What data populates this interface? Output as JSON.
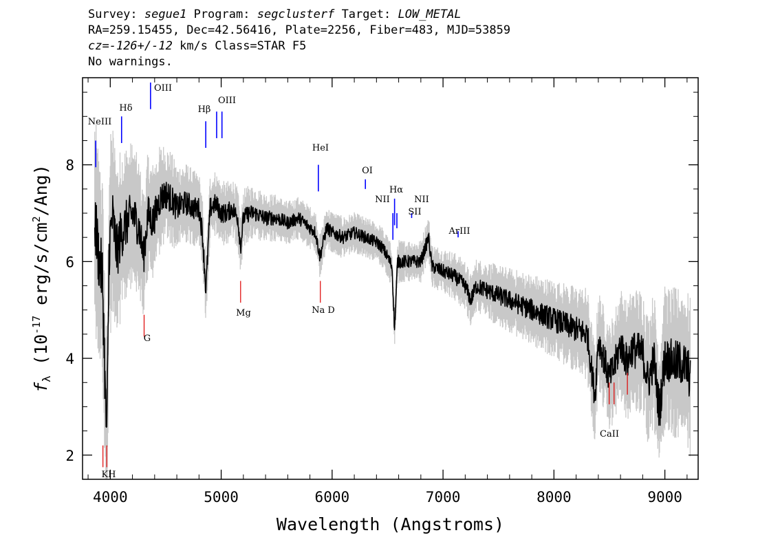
{
  "header": {
    "survey_label": "Survey:",
    "survey": "segue1",
    "program_label": "Program:",
    "program": "segclusterf",
    "target_label": "Target:",
    "target": "LOW_METAL",
    "line2": "RA=259.15455, Dec=42.56416, Plate=2256, Fiber=483, MJD=53859",
    "cz_label": "cz=",
    "cz": "-126+/-12",
    "cz_units_class": " km/s Class=STAR F5",
    "line4": "No warnings."
  },
  "colors": {
    "flux": "#000000",
    "error_band": "#c8c8c8",
    "emission": "#0000ff",
    "absorption": "#dd0000",
    "frame": "#000000"
  },
  "chart_data": {
    "type": "line",
    "title": "",
    "xlabel": "Wavelength (Angstroms)",
    "ylabel": "fλ (10^-17 erg/s/cm^2/Ang)",
    "xlim": [
      3750,
      9300
    ],
    "ylim": [
      1.5,
      9.8
    ],
    "x_ticks": [
      4000,
      5000,
      6000,
      7000,
      8000,
      9000
    ],
    "x_tick_labels": [
      "4000",
      "5000",
      "6000",
      "7000",
      "8000",
      "9000"
    ],
    "y_ticks": [
      2,
      4,
      6,
      8
    ],
    "y_tick_labels": [
      "2",
      "4",
      "6",
      "8"
    ],
    "grid": false,
    "series": [
      {
        "kind": "flux",
        "x": [
          3860,
          3900,
          3930,
          3960,
          3970,
          3990,
          4020,
          4060,
          4100,
          4150,
          4200,
          4260,
          4300,
          4340,
          4380,
          4450,
          4500,
          4550,
          4600,
          4650,
          4700,
          4750,
          4800,
          4830,
          4862,
          4900,
          4950,
          5000,
          5050,
          5100,
          5150,
          5175,
          5200,
          5250,
          5300,
          5400,
          5500,
          5600,
          5700,
          5800,
          5850,
          5890,
          5950,
          6000,
          6100,
          6200,
          6300,
          6400,
          6450,
          6500,
          6540,
          6563,
          6590,
          6650,
          6700,
          6800,
          6870,
          6900,
          7000,
          7100,
          7200,
          7250,
          7300,
          7400,
          7500,
          7600,
          7700,
          7800,
          7900,
          8000,
          8100,
          8200,
          8300,
          8370,
          8400,
          8498,
          8542,
          8600,
          8662,
          8700,
          8800,
          8850,
          8900,
          8950,
          9000,
          9100,
          9150,
          9200,
          9230
        ],
        "y": [
          6.9,
          6.0,
          5.7,
          2.8,
          2.4,
          6.3,
          6.9,
          6.2,
          6.6,
          6.8,
          7.0,
          6.7,
          6.1,
          7.0,
          6.8,
          7.3,
          7.4,
          7.3,
          7.1,
          7.2,
          7.2,
          7.1,
          7.1,
          6.6,
          5.4,
          7.1,
          7.2,
          7.0,
          7.0,
          7.1,
          6.9,
          6.3,
          6.9,
          7.0,
          7.0,
          6.9,
          6.9,
          6.8,
          6.9,
          6.7,
          6.6,
          6.1,
          6.7,
          6.6,
          6.5,
          6.6,
          6.5,
          6.4,
          6.3,
          6.1,
          5.9,
          4.6,
          6.0,
          6.0,
          6.0,
          6.0,
          6.5,
          5.9,
          5.8,
          5.7,
          5.5,
          5.2,
          5.5,
          5.4,
          5.3,
          5.2,
          5.1,
          5.0,
          4.9,
          4.8,
          4.7,
          4.6,
          4.5,
          3.2,
          4.4,
          3.6,
          3.8,
          4.3,
          3.9,
          4.2,
          4.1,
          3.5,
          4.0,
          2.9,
          4.0,
          3.9,
          3.9,
          3.8,
          3.6
        ]
      },
      {
        "kind": "error_band",
        "x": [
          3860,
          4000,
          4200,
          4400,
          4600,
          4800,
          5000,
          5200,
          5400,
          5600,
          5800,
          6000,
          6200,
          6400,
          6600,
          6800,
          7000,
          7200,
          7400,
          7600,
          7800,
          8000,
          8200,
          8400,
          8600,
          8800,
          9000,
          9230
        ],
        "halfwidth": [
          1.5,
          1.4,
          1.0,
          0.8,
          0.6,
          0.5,
          0.45,
          0.4,
          0.35,
          0.3,
          0.3,
          0.3,
          0.28,
          0.28,
          0.3,
          0.3,
          0.32,
          0.35,
          0.4,
          0.45,
          0.5,
          0.55,
          0.6,
          0.7,
          0.8,
          0.9,
          1.0,
          1.1
        ]
      }
    ],
    "emission_lines": [
      {
        "label": "NeIII",
        "wavelength": 3869,
        "y_top": 8.5
      },
      {
        "label": "Hδ",
        "wavelength": 4102,
        "y_top": 9.0
      },
      {
        "label": "OIII",
        "wavelength": 4363,
        "y_top": 9.7
      },
      {
        "label": "Hβ",
        "wavelength": 4861,
        "y_top": 8.9
      },
      {
        "label": "OIII",
        "wavelength": 4959,
        "y_top": 9.1
      },
      {
        "label": "OIII",
        "wavelength": 5007,
        "y_top": 9.1
      },
      {
        "label": "HeI",
        "wavelength": 5876,
        "y_top": 8.0
      },
      {
        "label": "OI",
        "wavelength": 6300,
        "y_top": 7.7
      },
      {
        "label": "NII",
        "wavelength": 6548,
        "y_top": 7.0
      },
      {
        "label": "Hα",
        "wavelength": 6563,
        "y_top": 7.3
      },
      {
        "label": "NII",
        "wavelength": 6584,
        "y_top": 7.0
      },
      {
        "label": "SII",
        "wavelength": 6717,
        "y_top": 6.9
      },
      {
        "label": "ArIII",
        "wavelength": 7136,
        "y_top": 6.5
      }
    ],
    "absorption_lines": [
      {
        "label": "K",
        "wavelength": 3934,
        "y_top": 2.2
      },
      {
        "label": "H",
        "wavelength": 3969,
        "y_top": 2.2
      },
      {
        "label": "G",
        "wavelength": 4305,
        "y_top": 4.9
      },
      {
        "label": "Mg",
        "wavelength": 5175,
        "y_top": 5.6
      },
      {
        "label": "Na D",
        "wavelength": 5894,
        "y_top": 5.6
      },
      {
        "label": "CaII",
        "wavelength": 8498,
        "y_top": 3.5
      },
      {
        "label": "CaII",
        "wavelength": 8542,
        "y_top": 3.5
      },
      {
        "label": "CaII",
        "wavelength": 8662,
        "y_top": 3.7
      }
    ],
    "line_label_text": {
      "emission": [
        "NeIII",
        "Hδ",
        "OIII",
        "Hβ",
        "OIII",
        "HeI",
        "OI",
        "Hα",
        "NII",
        "NII",
        "SII",
        "ArIII"
      ],
      "absorption": [
        "KH",
        "G",
        "Mg",
        "Na  D",
        "CaII"
      ]
    }
  }
}
